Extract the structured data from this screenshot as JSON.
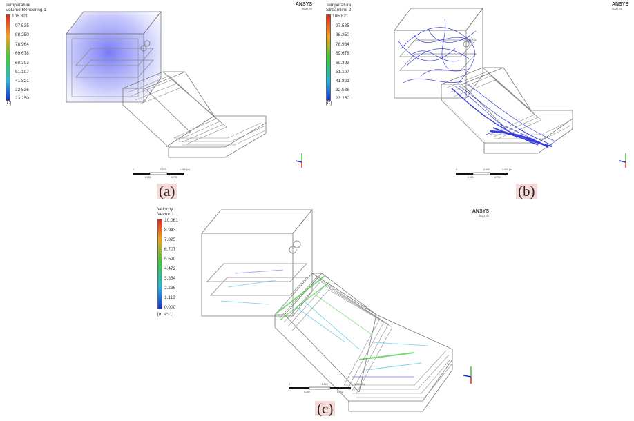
{
  "panels": [
    {
      "id": "a",
      "legend_title_1": "Temperature",
      "legend_title_2": "Volume Rendering 1",
      "ticks": [
        "106.821",
        "97.535",
        "88.250",
        "78.964",
        "69.678",
        "60.393",
        "51.107",
        "41.821",
        "32.536",
        "23.250"
      ],
      "unit": "[C]",
      "ansys": "ANSYS",
      "version": "2020 R2",
      "caption": "(a)",
      "scale_labels": [
        "0",
        "0.500",
        "1.000 (m)",
        "0.250",
        "0.750"
      ]
    },
    {
      "id": "b",
      "legend_title_1": "Temperature",
      "legend_title_2": "Streamline 2",
      "ticks": [
        "106.821",
        "97.535",
        "88.250",
        "78.964",
        "69.678",
        "60.393",
        "51.107",
        "41.821",
        "32.536",
        "23.250"
      ],
      "unit": "[C]",
      "ansys": "ANSYS",
      "version": "2020 R2",
      "caption": "(b)",
      "scale_labels": [
        "0",
        "0.500",
        "1.000 (m)",
        "0.250",
        "0.750"
      ]
    },
    {
      "id": "c",
      "legend_title_1": "Velocity",
      "legend_title_2": "Vector 1",
      "ticks": [
        "10.061",
        "8.943",
        "7.825",
        "6.707",
        "5.590",
        "4.472",
        "3.354",
        "2.236",
        "1.118",
        "0.000"
      ],
      "unit": "[m s^-1]",
      "ansys": "ANSYS",
      "version": "2020 R2",
      "caption": "(c)",
      "scale_labels": [
        "0",
        "0.500",
        "1.000 (m)",
        "0.250",
        "0.750"
      ]
    }
  ],
  "colors": {
    "colormap_top": "#e8251b",
    "colormap_upper": "#f6a21a",
    "colormap_mid": "#3ec73a",
    "colormap_lower": "#20b4e0",
    "colormap_bottom": "#1830d8",
    "streamline": "#1a1fd6",
    "caption_bg": "#f6d9d9"
  }
}
